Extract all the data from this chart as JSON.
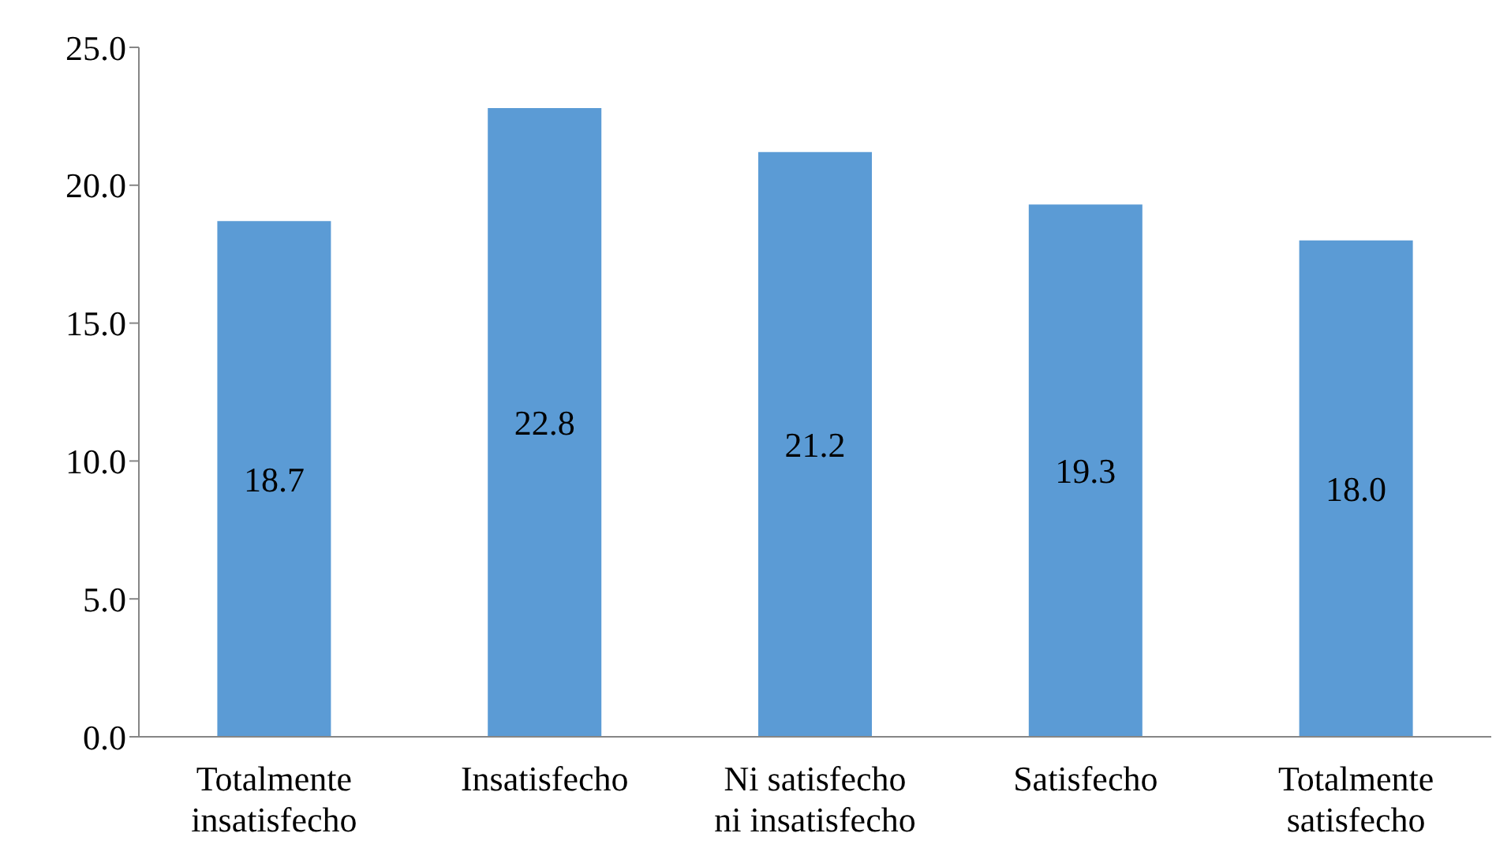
{
  "chart_data": {
    "type": "bar",
    "categories": [
      "Totalmente insatisfecho",
      "Insatisfecho",
      "Ni satisfecho ni insatisfecho",
      "Satisfecho",
      "Totalmente satisfecho"
    ],
    "values": [
      18.7,
      22.8,
      21.2,
      19.3,
      18.0
    ],
    "color": "#5b9bd5",
    "ylim": [
      0,
      25
    ],
    "yticks": [
      {
        "value": 0,
        "label": "0.0"
      },
      {
        "value": 5,
        "label": "5.0"
      },
      {
        "value": 10,
        "label": "10.0"
      },
      {
        "value": 15,
        "label": "15.0"
      },
      {
        "value": 20,
        "label": "20.0"
      },
      {
        "value": 25,
        "label": "25.0"
      }
    ],
    "grid": false,
    "data_labels": true,
    "value_labels": [
      "18.7",
      "22.8",
      "21.2",
      "19.3",
      "18.0"
    ]
  }
}
